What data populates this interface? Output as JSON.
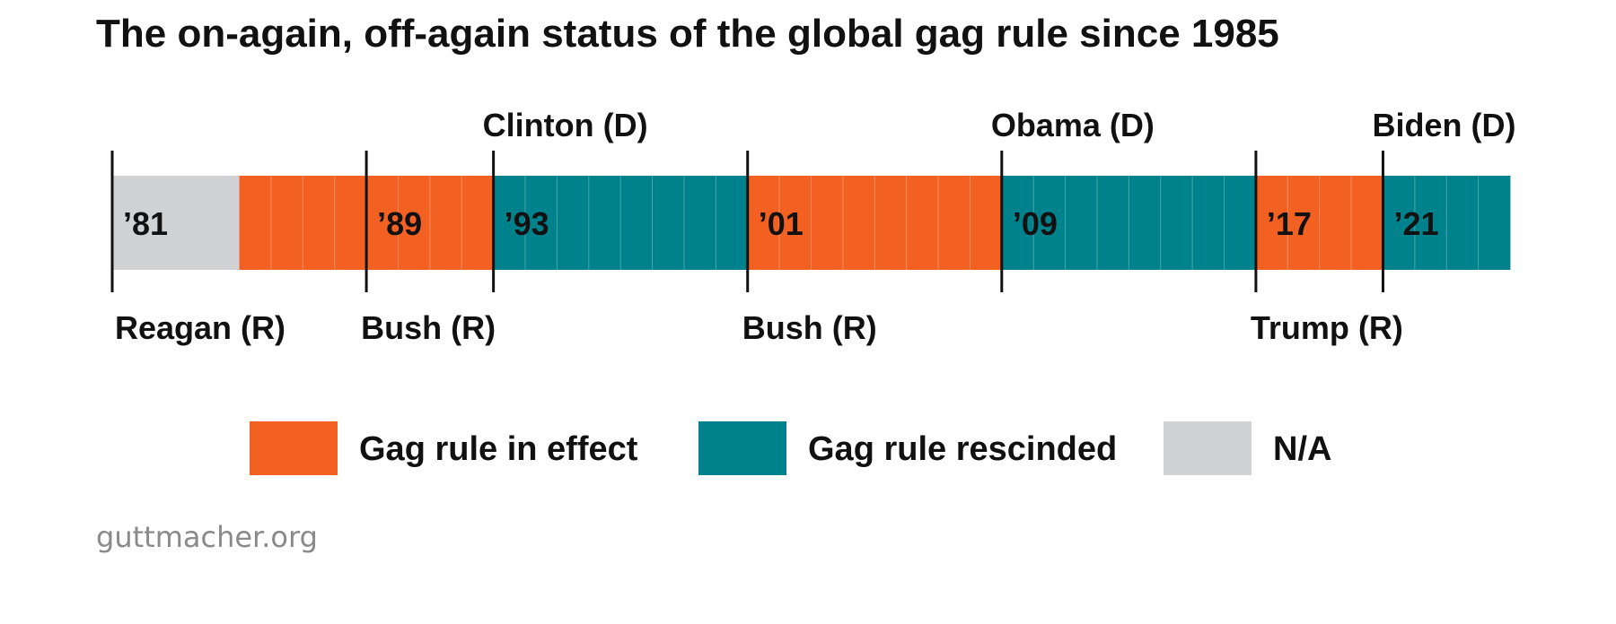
{
  "chart_data": {
    "type": "timeline",
    "title": "The on-again, off-again status of the global gag rule since 1985",
    "year_range": [
      1981,
      2024
    ],
    "colors": {
      "in_effect": "#f26122",
      "rescinded": "#00828c",
      "na": "#d1d2d4"
    },
    "years": [
      {
        "year": 1981,
        "status": "na"
      },
      {
        "year": 1982,
        "status": "na"
      },
      {
        "year": 1983,
        "status": "na"
      },
      {
        "year": 1984,
        "status": "na"
      },
      {
        "year": 1985,
        "status": "in_effect"
      },
      {
        "year": 1986,
        "status": "in_effect"
      },
      {
        "year": 1987,
        "status": "in_effect"
      },
      {
        "year": 1988,
        "status": "in_effect"
      },
      {
        "year": 1989,
        "status": "in_effect"
      },
      {
        "year": 1990,
        "status": "in_effect"
      },
      {
        "year": 1991,
        "status": "in_effect"
      },
      {
        "year": 1992,
        "status": "in_effect"
      },
      {
        "year": 1993,
        "status": "rescinded"
      },
      {
        "year": 1994,
        "status": "rescinded"
      },
      {
        "year": 1995,
        "status": "rescinded"
      },
      {
        "year": 1996,
        "status": "rescinded"
      },
      {
        "year": 1997,
        "status": "rescinded"
      },
      {
        "year": 1998,
        "status": "rescinded"
      },
      {
        "year": 1999,
        "status": "rescinded"
      },
      {
        "year": 2000,
        "status": "rescinded"
      },
      {
        "year": 2001,
        "status": "in_effect"
      },
      {
        "year": 2002,
        "status": "in_effect"
      },
      {
        "year": 2003,
        "status": "in_effect"
      },
      {
        "year": 2004,
        "status": "in_effect"
      },
      {
        "year": 2005,
        "status": "in_effect"
      },
      {
        "year": 2006,
        "status": "in_effect"
      },
      {
        "year": 2007,
        "status": "in_effect"
      },
      {
        "year": 2008,
        "status": "in_effect"
      },
      {
        "year": 2009,
        "status": "rescinded"
      },
      {
        "year": 2010,
        "status": "rescinded"
      },
      {
        "year": 2011,
        "status": "rescinded"
      },
      {
        "year": 2012,
        "status": "rescinded"
      },
      {
        "year": 2013,
        "status": "rescinded"
      },
      {
        "year": 2014,
        "status": "rescinded"
      },
      {
        "year": 2015,
        "status": "rescinded"
      },
      {
        "year": 2016,
        "status": "rescinded"
      },
      {
        "year": 2017,
        "status": "in_effect"
      },
      {
        "year": 2018,
        "status": "in_effect"
      },
      {
        "year": 2019,
        "status": "in_effect"
      },
      {
        "year": 2020,
        "status": "in_effect"
      },
      {
        "year": 2021,
        "status": "rescinded"
      },
      {
        "year": 2022,
        "status": "rescinded"
      },
      {
        "year": 2023,
        "status": "rescinded"
      },
      {
        "year": 2024,
        "status": "rescinded"
      }
    ],
    "markers": [
      {
        "year": 1981,
        "year_label": "’81",
        "president": "Reagan (R)",
        "side": "below"
      },
      {
        "year": 1989,
        "year_label": "’89",
        "president": "Bush (R)",
        "side": "below"
      },
      {
        "year": 1993,
        "year_label": "’93",
        "president": "Clinton (D)",
        "side": "above"
      },
      {
        "year": 2001,
        "year_label": "’01",
        "president": "Bush (R)",
        "side": "below"
      },
      {
        "year": 2009,
        "year_label": "’09",
        "president": "Obama (D)",
        "side": "above"
      },
      {
        "year": 2017,
        "year_label": "’17",
        "president": "Trump (R)",
        "side": "below"
      },
      {
        "year": 2021,
        "year_label": "’21",
        "president": "Biden (D)",
        "side": "above"
      }
    ],
    "legend": [
      {
        "key": "in_effect",
        "label": "Gag rule in effect"
      },
      {
        "key": "rescinded",
        "label": "Gag rule rescinded"
      },
      {
        "key": "na",
        "label": "N/A"
      }
    ]
  },
  "source": "guttmacher.org"
}
